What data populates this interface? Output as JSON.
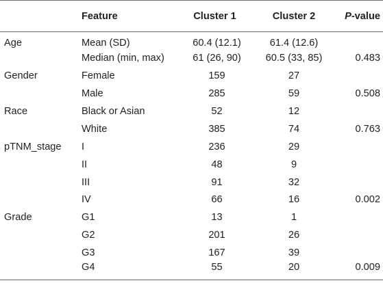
{
  "table": {
    "headers": {
      "variable": "",
      "feature": "Feature",
      "cluster1": "Cluster 1",
      "cluster2": "Cluster 2",
      "pvalue_p": "P",
      "pvalue_rest": "-value"
    },
    "rows": [
      {
        "variable": "Age",
        "feature": "Mean (SD)",
        "cluster1": "60.4 (12.1)",
        "cluster2": "61.4 (12.6)",
        "pvalue": ""
      },
      {
        "variable": "",
        "feature": "Median (min, max)",
        "cluster1": "61 (26, 90)",
        "cluster2": "60.5 (33, 85)",
        "pvalue": "0.483"
      },
      {
        "variable": "Gender",
        "feature": "Female",
        "cluster1": "159",
        "cluster2": "27",
        "pvalue": ""
      },
      {
        "variable": "",
        "feature": "Male",
        "cluster1": "285",
        "cluster2": "59",
        "pvalue": "0.508"
      },
      {
        "variable": "Race",
        "feature": "Black or Asian",
        "cluster1": "52",
        "cluster2": "12",
        "pvalue": ""
      },
      {
        "variable": "",
        "feature": "White",
        "cluster1": "385",
        "cluster2": "74",
        "pvalue": "0.763"
      },
      {
        "variable": "pTNM_stage",
        "feature": "I",
        "cluster1": "236",
        "cluster2": "29",
        "pvalue": ""
      },
      {
        "variable": "",
        "feature": "II",
        "cluster1": "48",
        "cluster2": "9",
        "pvalue": ""
      },
      {
        "variable": "",
        "feature": "III",
        "cluster1": "91",
        "cluster2": "32",
        "pvalue": ""
      },
      {
        "variable": "",
        "feature": "IV",
        "cluster1": "66",
        "cluster2": "16",
        "pvalue": "0.002"
      },
      {
        "variable": "Grade",
        "feature": "G1",
        "cluster1": "13",
        "cluster2": "1",
        "pvalue": ""
      },
      {
        "variable": "",
        "feature": "G2",
        "cluster1": "201",
        "cluster2": "26",
        "pvalue": ""
      },
      {
        "variable": "",
        "feature": "G3",
        "cluster1": "167",
        "cluster2": "39",
        "pvalue": ""
      },
      {
        "variable": "",
        "feature": "G4",
        "cluster1": "55",
        "cluster2": "20",
        "pvalue": "0.009"
      }
    ]
  }
}
